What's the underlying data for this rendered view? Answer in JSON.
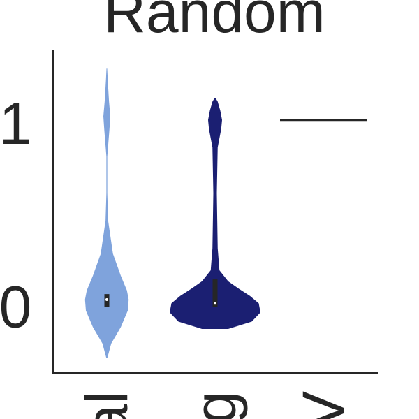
{
  "chart_data": {
    "type": "violin",
    "title": "Random",
    "xlabel": "",
    "ylabel": "",
    "ylim": [
      -0.38,
      1.38
    ],
    "yticks": [
      0,
      1
    ],
    "ytick_labels": [
      "0",
      "1"
    ],
    "categories": [
      "al",
      "g",
      "V"
    ],
    "grid": false,
    "legend": "none",
    "series": [
      {
        "color": "#7fa3dc",
        "median": 0.02,
        "q1": -0.02,
        "q3": 0.05,
        "min": -0.3,
        "max": 1.28,
        "density": [
          [
            -0.3,
            0.005
          ],
          [
            -0.22,
            0.05
          ],
          [
            -0.13,
            0.16
          ],
          [
            -0.04,
            0.24
          ],
          [
            0.02,
            0.25
          ],
          [
            0.07,
            0.23
          ],
          [
            0.15,
            0.16
          ],
          [
            0.27,
            0.07
          ],
          [
            0.45,
            0.015
          ],
          [
            0.6,
            0.005
          ],
          [
            0.8,
            0.005
          ],
          [
            0.95,
            0.03
          ],
          [
            1.02,
            0.04
          ],
          [
            1.1,
            0.025
          ],
          [
            1.22,
            0.01
          ],
          [
            1.28,
            0.004
          ]
        ]
      },
      {
        "color": "#1b1f72",
        "median": 0.0,
        "q1": -0.02,
        "q3": 0.13,
        "min": -0.14,
        "max": 1.12,
        "density": [
          [
            -0.14,
            0.15
          ],
          [
            -0.1,
            0.42
          ],
          [
            -0.05,
            0.52
          ],
          [
            0.0,
            0.5
          ],
          [
            0.04,
            0.4
          ],
          [
            0.08,
            0.27
          ],
          [
            0.12,
            0.15
          ],
          [
            0.18,
            0.05
          ],
          [
            0.3,
            0.03
          ],
          [
            0.6,
            0.02
          ],
          [
            0.85,
            0.03
          ],
          [
            0.95,
            0.07
          ],
          [
            1.0,
            0.08
          ],
          [
            1.05,
            0.06
          ],
          [
            1.1,
            0.03
          ],
          [
            1.12,
            0.005
          ]
        ]
      },
      {
        "type": "line",
        "value": 1.0
      }
    ]
  }
}
